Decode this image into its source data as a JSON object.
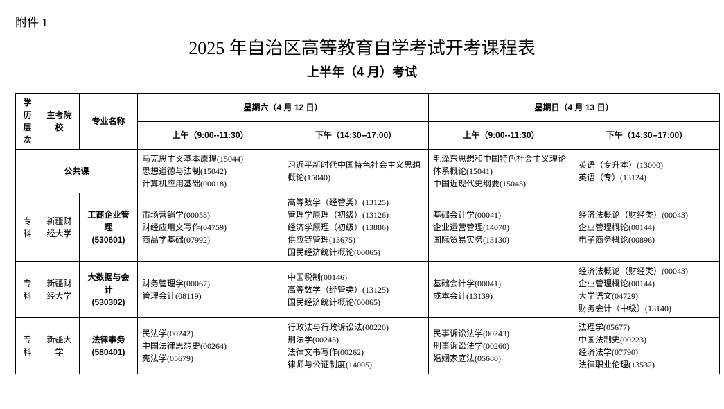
{
  "attachment": "附件 1",
  "title": "2025 年自治区高等教育自学考试开考课程表",
  "subtitle": "上半年（4 月）考试",
  "headers": {
    "level": "学历层次",
    "school": "主考院校",
    "major": "专业名称",
    "day1": "星期六（4 月 12 日）",
    "day2": "星期日（4 月 13 日）",
    "slot_am": "上午（9:00--11:30）",
    "slot_pm": "下午（14:30--17:00）"
  },
  "public_label": "公共课",
  "public_row": {
    "sat_am": "马克思主义基本原理(15044)\n思想道德与法制(15042)\n计算机应用基础(00018)",
    "sat_pm": "习近平新时代中国特色社会主义思想概论(15040)",
    "sun_am": "毛泽东思想和中国特色社会主义理论体系概论(15041)\n中国近现代史纲要(15043)",
    "sun_pm": "英语（专升本）(13000)\n英语（专）(13124)"
  },
  "rows": [
    {
      "level": "专科",
      "school": "新疆财经大学",
      "major": "工商企业管理\n(530601)",
      "sat_am": "市场营销学(00058)\n财经应用文写作(04759)\n商品学基础(07992)",
      "sat_pm": "高等数学（经管类）(13125)\n管理学原理（初级）(13126)\n经济学原理（初级）(13886)\n供应链管理(13675)\n国民经济统计概论(00065)",
      "sun_am": "基础会计学(00041)\n企业运营管理(14070)\n国际贸易实务(13130)",
      "sun_pm": "经济法概论（财经类）(00043)\n企业管理概论(00144)\n电子商务概论(00896)"
    },
    {
      "level": "专科",
      "school": "新疆财经大学",
      "major": "大数据与会计\n(530302)",
      "sat_am": "财务管理学(00067)\n管理会计(08119)",
      "sat_pm": "中国税制(00146)\n高等数学（经管类）(13125)\n国民经济统计概论(00065)",
      "sun_am": "基础会计学(00041)\n成本会计(13139)",
      "sun_pm": "经济法概论（财经类）(00043)\n企业管理概论(00144)\n大学语文(04729)\n财务会计（中级）(13140)"
    },
    {
      "level": "专科",
      "school": "新疆大学",
      "major": "法律事务\n(580401)",
      "sat_am": "民法学(00242)\n中国法律思想史(00264)\n宪法学(05679)",
      "sat_pm": "行政法与行政诉讼法(00220)\n刑法学(00245)\n法律文书写作(00262)\n律师与公证制度(14005)",
      "sun_am": "民事诉讼法学(00243)\n刑事诉讼法学(00260)\n婚姻家庭法(05680)",
      "sun_pm": "法理学(05677)\n中国法制史(00223)\n经济法学(07790)\n法律职业伦理(13532)"
    }
  ]
}
